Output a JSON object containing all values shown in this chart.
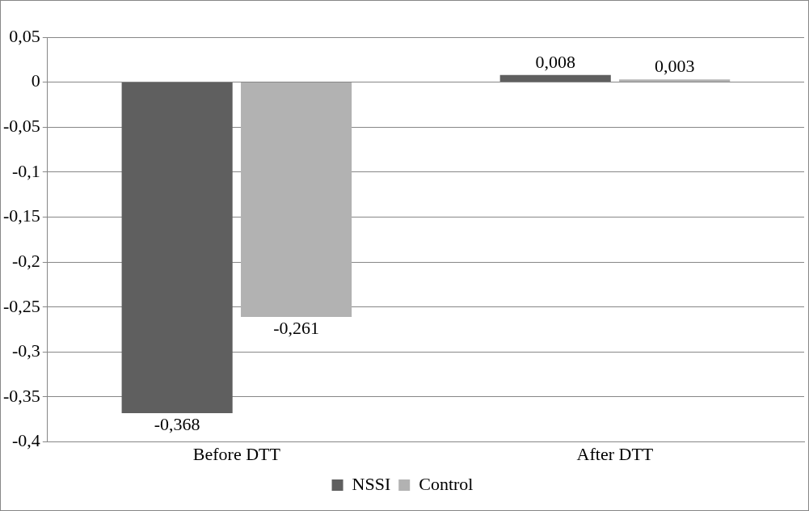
{
  "chart_data": {
    "type": "bar",
    "categories": [
      "Before DTT",
      "After DTT"
    ],
    "series": [
      {
        "name": "NSSI",
        "color": "#5f5f5f",
        "values": [
          -0.368,
          0.008
        ],
        "value_labels": [
          "-0,368",
          "0,008"
        ]
      },
      {
        "name": "Control",
        "color": "#b2b2b2",
        "values": [
          -0.261,
          0.003
        ],
        "value_labels": [
          "-0,261",
          "0,003"
        ]
      }
    ],
    "ylim": [
      -0.4,
      0.05
    ],
    "yticks": [
      {
        "value": 0.05,
        "label": "0,05"
      },
      0,
      {
        "value": -0.05,
        "label": "-0,05"
      },
      {
        "value": -0.1,
        "label": "-0,1"
      },
      {
        "value": -0.15,
        "label": "-0,15"
      },
      {
        "value": -0.2,
        "label": "-0,2"
      },
      {
        "value": -0.25,
        "label": "-0,25"
      },
      {
        "value": -0.3,
        "label": "-0,3"
      },
      {
        "value": -0.35,
        "label": "-0,35"
      },
      {
        "value": -0.4,
        "label": "-0,4"
      }
    ],
    "grid": "y",
    "legend": "bottom"
  }
}
